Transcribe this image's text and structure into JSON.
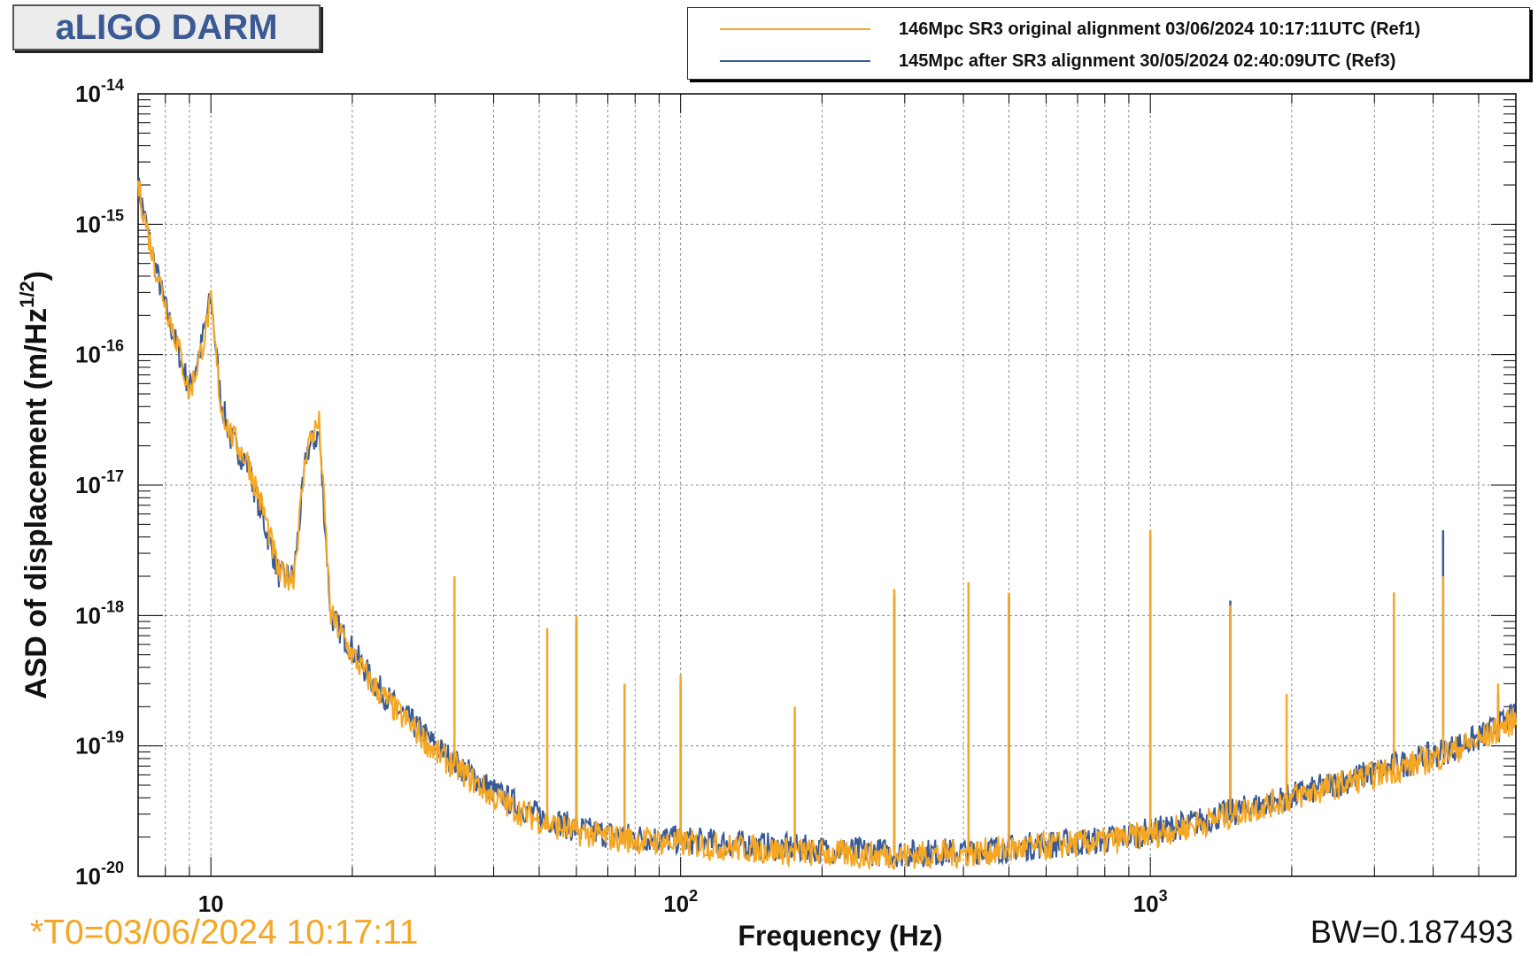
{
  "title": "aLIGO DARM",
  "legend": [
    {
      "label": "146Mpc SR3 original alignment 03/06/2024 10:17:11UTC (Ref1)",
      "color": "#f5a623"
    },
    {
      "label": "145Mpc after SR3 alignment 30/05/2024 02:40:09UTC (Ref3)",
      "color": "#3a5a96"
    }
  ],
  "footer": {
    "t0": "*T0=03/06/2024 10:17:11",
    "bw": "BW=0.187493"
  },
  "chart_data": {
    "type": "line",
    "title": "aLIGO DARM",
    "xlabel": "Frequency (Hz)",
    "ylabel": "ASD of displacement (m/Hz^(1/2))",
    "xscale": "log",
    "yscale": "log",
    "xlim": [
      7,
      6000
    ],
    "ylim": [
      1e-20,
      1e-14
    ],
    "grid": true,
    "legend_position": "top-right",
    "x_tick_labels": [
      "10",
      "10^2",
      "10^3"
    ],
    "y_tick_labels": [
      "10^-20",
      "10^-19",
      "10^-18",
      "10^-17",
      "10^-16",
      "10^-15",
      "10^-14"
    ],
    "series": [
      {
        "name": "146Mpc SR3 original alignment 03/06/2024 10:17:11UTC (Ref1)",
        "color": "#f5a623",
        "x": [
          7,
          7.5,
          8,
          8.5,
          9,
          9.5,
          10,
          10.5,
          11,
          12,
          13,
          14,
          15,
          16,
          17,
          18,
          20,
          22,
          25,
          28,
          30,
          33,
          36,
          40,
          45,
          50,
          55,
          60,
          70,
          80,
          100,
          120,
          150,
          200,
          250,
          300,
          400,
          500,
          600,
          800,
          1000,
          1200,
          1500,
          2000,
          2500,
          3000,
          4000,
          5000,
          6000
        ],
        "y": [
          2e-15,
          6e-16,
          2.5e-16,
          1.2e-16,
          5e-17,
          1e-16,
          2.5e-16,
          4e-17,
          2.5e-17,
          1.5e-17,
          6e-18,
          2e-18,
          2e-18,
          2e-17,
          3e-17,
          1e-18,
          5e-19,
          3e-19,
          1.8e-19,
          1.2e-19,
          9e-20,
          7e-20,
          5.5e-20,
          4e-20,
          3.2e-20,
          2.7e-20,
          2.4e-20,
          2.2e-20,
          2e-20,
          1.9e-20,
          1.8e-20,
          1.7e-20,
          1.6e-20,
          1.5e-20,
          1.45e-20,
          1.45e-20,
          1.5e-20,
          1.6e-20,
          1.7e-20,
          1.85e-20,
          2.1e-20,
          2.4e-20,
          3e-20,
          4e-20,
          5e-20,
          6e-20,
          8e-20,
          1.1e-19,
          1.6e-19
        ],
        "peaks": [
          {
            "x": 33,
            "y": 2e-18
          },
          {
            "x": 52,
            "y": 8e-19
          },
          {
            "x": 60,
            "y": 1e-18
          },
          {
            "x": 76,
            "y": 3e-19
          },
          {
            "x": 100,
            "y": 3.5e-19
          },
          {
            "x": 175,
            "y": 2e-19
          },
          {
            "x": 285,
            "y": 1.6e-18
          },
          {
            "x": 410,
            "y": 1.8e-18
          },
          {
            "x": 500,
            "y": 1.5e-18
          },
          {
            "x": 1000,
            "y": 4.5e-18
          },
          {
            "x": 1480,
            "y": 1.2e-18
          },
          {
            "x": 1950,
            "y": 2.5e-19
          },
          {
            "x": 3300,
            "y": 1.5e-18
          },
          {
            "x": 4200,
            "y": 2e-18
          },
          {
            "x": 5500,
            "y": 3e-19
          }
        ]
      },
      {
        "name": "145Mpc after SR3 alignment 30/05/2024 02:40:09UTC (Ref3)",
        "color": "#3a5a96",
        "x": [
          7,
          7.5,
          8,
          8.5,
          9,
          9.5,
          10,
          10.5,
          11,
          12,
          13,
          14,
          15,
          16,
          17,
          18,
          20,
          22,
          25,
          28,
          30,
          33,
          36,
          40,
          45,
          50,
          55,
          60,
          70,
          80,
          100,
          120,
          150,
          200,
          250,
          300,
          400,
          500,
          600,
          800,
          1000,
          1200,
          1500,
          2000,
          2500,
          3000,
          4000,
          5000,
          6000
        ],
        "y": [
          2e-15,
          6e-16,
          2.3e-16,
          1.1e-16,
          5.5e-17,
          1.1e-16,
          2.8e-16,
          4.5e-17,
          2.3e-17,
          1.4e-17,
          5e-18,
          2e-18,
          2e-18,
          1.8e-17,
          2.5e-17,
          1e-18,
          5.5e-19,
          3.2e-19,
          1.9e-19,
          1.3e-19,
          1e-19,
          7.5e-20,
          6e-20,
          4.5e-20,
          3.5e-20,
          2.9e-20,
          2.6e-20,
          2.3e-20,
          2.1e-20,
          2e-20,
          1.9e-20,
          1.8e-20,
          1.7e-20,
          1.6e-20,
          1.55e-20,
          1.5e-20,
          1.55e-20,
          1.65e-20,
          1.75e-20,
          1.9e-20,
          2.2e-20,
          2.5e-20,
          3.1e-20,
          4.1e-20,
          5.2e-20,
          6.3e-20,
          8.5e-20,
          1.15e-19,
          1.7e-19
        ],
        "peaks": [
          {
            "x": 33,
            "y": 1.8e-18
          },
          {
            "x": 60,
            "y": 9e-19
          },
          {
            "x": 100,
            "y": 3e-19
          },
          {
            "x": 285,
            "y": 1.4e-18
          },
          {
            "x": 500,
            "y": 1.4e-18
          },
          {
            "x": 1000,
            "y": 4e-18
          },
          {
            "x": 1480,
            "y": 1.3e-18
          },
          {
            "x": 4200,
            "y": 4.5e-18
          },
          {
            "x": 5500,
            "y": 2.5e-19
          }
        ]
      }
    ]
  }
}
